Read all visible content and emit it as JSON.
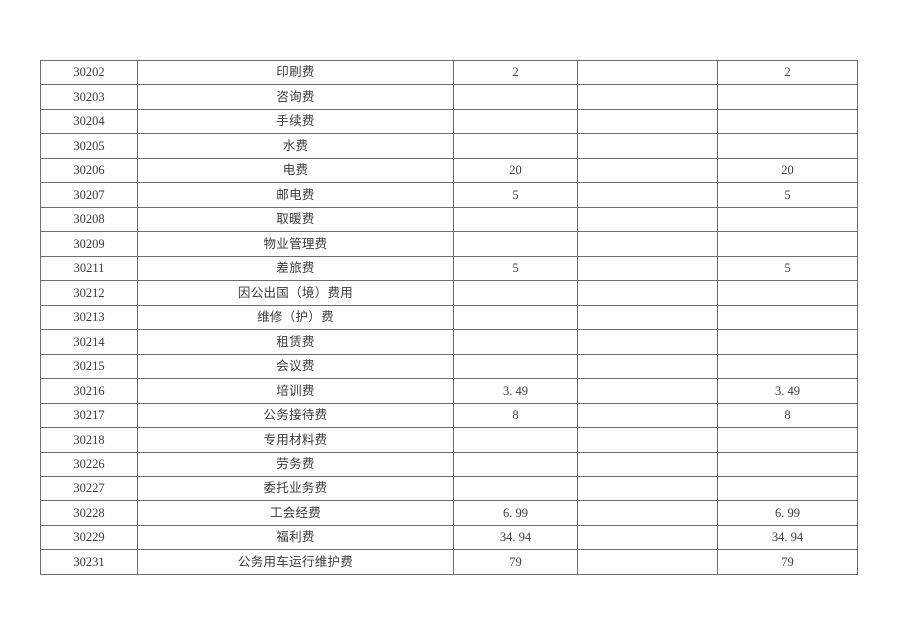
{
  "page": {
    "background_color": "#ffffff"
  },
  "table": {
    "description": "budget-expense-economic-classification-table",
    "border_color": "#6e6e6e",
    "text_color": "#3b3b3b",
    "column_keys": [
      "code",
      "name",
      "amount1",
      "blank",
      "amount2"
    ],
    "rows": [
      {
        "code": "30202",
        "name": "印刷费",
        "amount1": "2",
        "blank": "",
        "amount2": "2"
      },
      {
        "code": "30203",
        "name": "咨询费",
        "amount1": "",
        "blank": "",
        "amount2": ""
      },
      {
        "code": "30204",
        "name": "手续费",
        "amount1": "",
        "blank": "",
        "amount2": ""
      },
      {
        "code": "30205",
        "name": "水费",
        "amount1": "",
        "blank": "",
        "amount2": ""
      },
      {
        "code": "30206",
        "name": "电费",
        "amount1": "20",
        "blank": "",
        "amount2": "20"
      },
      {
        "code": "30207",
        "name": "邮电费",
        "amount1": "5",
        "blank": "",
        "amount2": "5"
      },
      {
        "code": "30208",
        "name": "取暖费",
        "amount1": "",
        "blank": "",
        "amount2": ""
      },
      {
        "code": "30209",
        "name": "物业管理费",
        "amount1": "",
        "blank": "",
        "amount2": ""
      },
      {
        "code": "30211",
        "name": "差旅费",
        "amount1": "5",
        "blank": "",
        "amount2": "5"
      },
      {
        "code": "30212",
        "name": "因公出国（境）费用",
        "amount1": "",
        "blank": "",
        "amount2": ""
      },
      {
        "code": "30213",
        "name": "维修（护）费",
        "amount1": "",
        "blank": "",
        "amount2": ""
      },
      {
        "code": "30214",
        "name": "租赁费",
        "amount1": "",
        "blank": "",
        "amount2": ""
      },
      {
        "code": "30215",
        "name": "会议费",
        "amount1": "",
        "blank": "",
        "amount2": ""
      },
      {
        "code": "30216",
        "name": "培训费",
        "amount1": "3. 49",
        "blank": "",
        "amount2": "3. 49"
      },
      {
        "code": "30217",
        "name": "公务接待费",
        "amount1": "8",
        "blank": "",
        "amount2": "8"
      },
      {
        "code": "30218",
        "name": "专用材料费",
        "amount1": "",
        "blank": "",
        "amount2": ""
      },
      {
        "code": "30226",
        "name": "劳务费",
        "amount1": "",
        "blank": "",
        "amount2": ""
      },
      {
        "code": "30227",
        "name": "委托业务费",
        "amount1": "",
        "blank": "",
        "amount2": ""
      },
      {
        "code": "30228",
        "name": "工会经费",
        "amount1": "6. 99",
        "blank": "",
        "amount2": "6. 99"
      },
      {
        "code": "30229",
        "name": "福利费",
        "amount1": "34. 94",
        "blank": "",
        "amount2": "34. 94"
      },
      {
        "code": "30231",
        "name": "公务用车运行维护费",
        "amount1": "79",
        "blank": "",
        "amount2": "79"
      }
    ]
  }
}
